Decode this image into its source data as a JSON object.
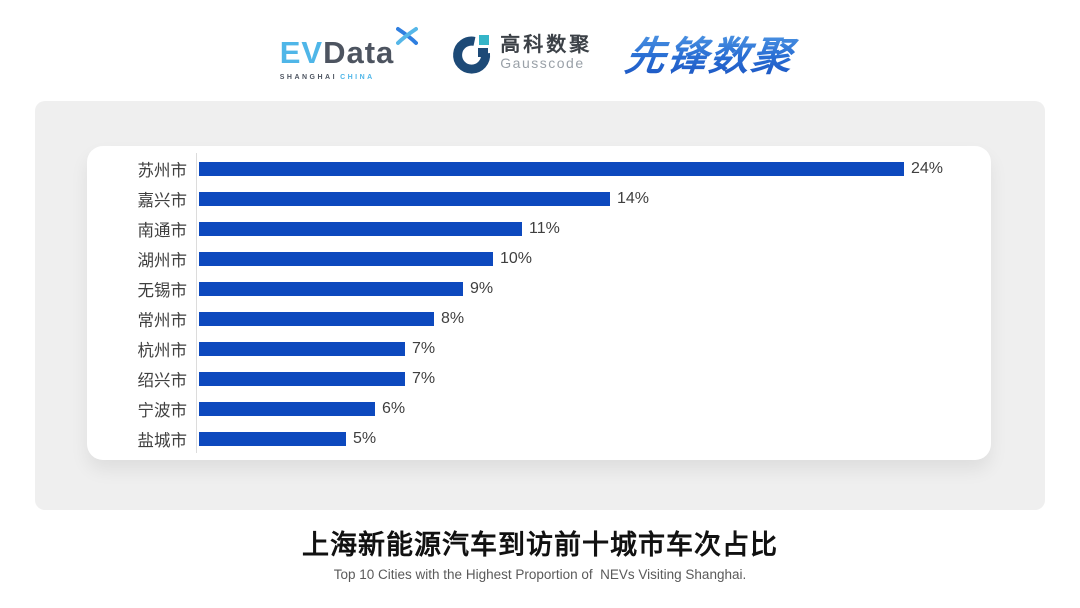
{
  "header": {
    "evdata_logo": {
      "ev": "EV",
      "data": "Data",
      "sub_left": "SHANGHAI",
      "sub_right": "CHINA"
    },
    "gausscode_logo": {
      "cn": "高科数聚",
      "en": "Gausscode"
    },
    "xianfeng_logo": {
      "text": "先锋数聚"
    }
  },
  "chart_data": {
    "type": "bar",
    "orientation": "horizontal",
    "categories": [
      "苏州市",
      "嘉兴市",
      "南通市",
      "湖州市",
      "无锡市",
      "常州市",
      "杭州市",
      "绍兴市",
      "宁波市",
      "盐城市"
    ],
    "values": [
      24,
      14,
      11,
      10,
      9,
      8,
      7,
      7,
      6,
      5
    ],
    "value_labels": [
      "24%",
      "14%",
      "11%",
      "10%",
      "9%",
      "8%",
      "7%",
      "7%",
      "6%",
      "5%"
    ],
    "title": "上海新能源汽车到访前十城市车次占比",
    "subtitle": "Top 10 Cities with the Highest Proportion of  NEVs Visiting Shanghai.",
    "xlim": [
      0,
      24
    ],
    "grid": false,
    "legend": false,
    "sorted": "descending"
  },
  "colors": {
    "bar": "#0d49be",
    "panel_bg": "#efefef",
    "card_bg": "#ffffff",
    "axis": "#dcdcdc",
    "label": "#3f3f3f",
    "title": "#111111",
    "subtitle": "#5a5a5a",
    "evdata_cyan": "#4fb6e8",
    "evdata_dark": "#4d5460",
    "gausscode_navy": "#1d4a77",
    "gausscode_teal": "#35b5c8",
    "xianfeng_blue": "#1a52c0"
  }
}
